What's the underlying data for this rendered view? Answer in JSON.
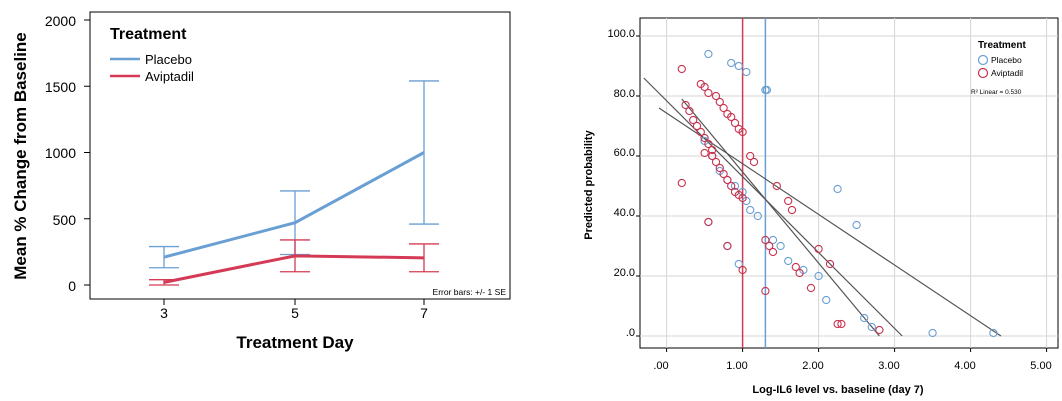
{
  "chart_data": [
    {
      "type": "line",
      "title": "",
      "xlabel": "Treatment Day",
      "ylabel": "Mean % Change from Baseline",
      "categories": [
        "3",
        "5",
        "7"
      ],
      "ylim": [
        -80,
        2050
      ],
      "yticks": [
        "0",
        "500",
        "1000",
        "1500",
        "2000"
      ],
      "grid": false,
      "legend": {
        "title": "Treatment",
        "placement": "top-left"
      },
      "series": [
        {
          "name": "Placebo",
          "color": "#6a9fd4",
          "values": [
            210,
            470,
            1000
          ],
          "error": [
            80,
            240,
            540
          ]
        },
        {
          "name": "Aviptadil",
          "color": "#d43a55",
          "values": [
            20,
            220,
            205
          ],
          "error": [
            20,
            120,
            105
          ]
        }
      ],
      "annotation": "Error bars: +/- 1 SE"
    },
    {
      "type": "scatter",
      "title": "",
      "xlabel": "Log-IL6 level vs. baseline (day 7)",
      "ylabel": "Predicted probability",
      "xlim": [
        -0.35,
        5.15
      ],
      "ylim": [
        -4,
        106
      ],
      "xticks": [
        ".00",
        "1.00",
        "2.00",
        "3.00",
        "4.00",
        "5.00"
      ],
      "yticks": [
        ".0",
        "20.0",
        "40.0",
        "60.0",
        "80.0",
        "100.0"
      ],
      "grid": true,
      "legend": {
        "title": "Treatment",
        "placement": "top-right"
      },
      "annotation": "R² Linear = 0.530",
      "reference_lines_x": [
        {
          "x": 1.0,
          "color": "#d43a55"
        },
        {
          "x": 1.3,
          "color": "#6a9fd4"
        }
      ],
      "fit_lines": [
        {
          "x": [
            -0.3,
            3.1
          ],
          "y": [
            86,
            0
          ]
        },
        {
          "x": [
            0.2,
            2.8
          ],
          "y": [
            79,
            0
          ]
        },
        {
          "x": [
            -0.1,
            4.4
          ],
          "y": [
            76,
            0
          ]
        }
      ],
      "series": [
        {
          "name": "Placebo",
          "color": "#6a9fd4",
          "points": [
            [
              0.55,
              94
            ],
            [
              0.85,
              91
            ],
            [
              0.95,
              90
            ],
            [
              1.05,
              88
            ],
            [
              1.3,
              82
            ],
            [
              1.32,
              82
            ],
            [
              0.5,
              65
            ],
            [
              0.6,
              60
            ],
            [
              0.7,
              55
            ],
            [
              0.8,
              52
            ],
            [
              0.9,
              50
            ],
            [
              1.0,
              48
            ],
            [
              1.05,
              45
            ],
            [
              1.1,
              42
            ],
            [
              1.2,
              40
            ],
            [
              0.55,
              38
            ],
            [
              0.8,
              30
            ],
            [
              1.4,
              32
            ],
            [
              1.6,
              25
            ],
            [
              1.8,
              22
            ],
            [
              2.0,
              20
            ],
            [
              2.1,
              12
            ],
            [
              2.25,
              49
            ],
            [
              2.5,
              37
            ],
            [
              2.6,
              6
            ],
            [
              2.7,
              3
            ],
            [
              3.5,
              1
            ],
            [
              4.3,
              1
            ],
            [
              0.95,
              24
            ],
            [
              1.5,
              30
            ]
          ]
        },
        {
          "name": "Aviptadil",
          "color": "#c9334e",
          "points": [
            [
              0.2,
              89
            ],
            [
              0.25,
              77
            ],
            [
              0.3,
              75
            ],
            [
              0.35,
              72
            ],
            [
              0.4,
              70
            ],
            [
              0.45,
              68
            ],
            [
              0.5,
              66
            ],
            [
              0.55,
              64
            ],
            [
              0.6,
              62
            ],
            [
              0.5,
              61
            ],
            [
              0.6,
              60
            ],
            [
              0.65,
              58
            ],
            [
              0.7,
              56
            ],
            [
              0.75,
              54
            ],
            [
              0.8,
              52
            ],
            [
              0.85,
              50
            ],
            [
              0.9,
              48
            ],
            [
              0.95,
              47
            ],
            [
              1.0,
              46
            ],
            [
              0.45,
              84
            ],
            [
              0.5,
              83
            ],
            [
              0.55,
              81
            ],
            [
              0.65,
              80
            ],
            [
              0.7,
              78
            ],
            [
              0.75,
              76
            ],
            [
              0.8,
              74
            ],
            [
              0.85,
              73
            ],
            [
              0.9,
              71
            ],
            [
              0.95,
              69
            ],
            [
              1.0,
              68
            ],
            [
              0.2,
              51
            ],
            [
              0.8,
              30
            ],
            [
              0.55,
              38
            ],
            [
              1.0,
              22
            ],
            [
              1.1,
              60
            ],
            [
              1.15,
              58
            ],
            [
              1.3,
              32
            ],
            [
              1.35,
              30
            ],
            [
              1.4,
              28
            ],
            [
              1.45,
              50
            ],
            [
              1.6,
              45
            ],
            [
              1.65,
              42
            ],
            [
              1.7,
              23
            ],
            [
              1.75,
              21
            ],
            [
              1.3,
              15
            ],
            [
              1.9,
              16
            ],
            [
              2.0,
              29
            ],
            [
              2.15,
              24
            ],
            [
              2.25,
              4
            ],
            [
              2.3,
              4
            ],
            [
              2.8,
              2
            ]
          ]
        }
      ]
    }
  ]
}
